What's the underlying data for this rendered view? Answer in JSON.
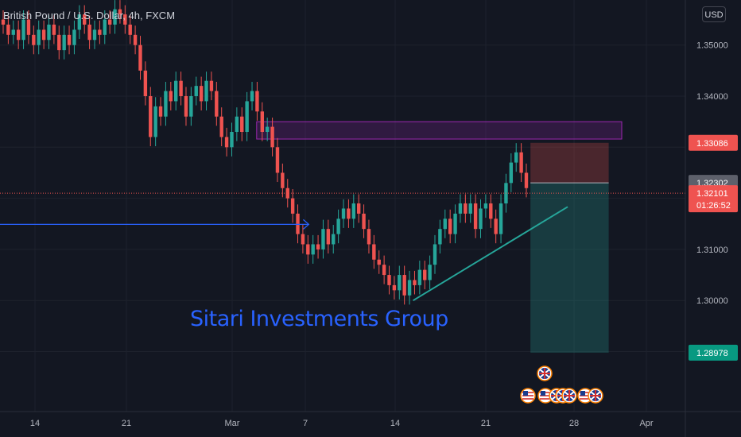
{
  "header": {
    "symbol_title": "British Pound / U.S. Dollar, 4h, FXCM",
    "currency": "USD"
  },
  "watermark": "Sitari Investments Group",
  "colors": {
    "background": "#131722",
    "grid": "#1e222d",
    "bull": "#26a69a",
    "bear": "#ef5350",
    "zone_border": "#9c27b0",
    "arrow": "#2962ff",
    "trendline": "#26a69a",
    "stop_zone": "rgba(239,83,80,0.25)",
    "target_zone": "rgba(38,166,154,0.25)"
  },
  "chart_data": {
    "type": "candlestick",
    "title": "British Pound / U.S. Dollar, 4h, FXCM",
    "x_ticks": [
      "14",
      "21",
      "Mar",
      "7",
      "14",
      "21",
      "28",
      "Apr"
    ],
    "y_ticks": [
      "1.35000",
      "1.34000",
      "1.31000",
      "1.30000"
    ],
    "ylim": [
      1.2767,
      1.3564
    ],
    "price_labels": [
      {
        "value": 1.33086,
        "text": "1.33086",
        "kind": "stop"
      },
      {
        "value": 1.32302,
        "text": "1.32302",
        "kind": "entry"
      },
      {
        "value": 1.32101,
        "text": "1.32101",
        "sub": "01:26:52",
        "kind": "current"
      },
      {
        "value": 1.28978,
        "text": "1.28978",
        "kind": "target"
      }
    ],
    "current_price": 1.32101,
    "countdown": "01:26:52",
    "resistance_zone": {
      "from_date": "Mar 3",
      "to_date": "Mar 31",
      "low": 1.3316,
      "high": 1.335
    },
    "arrow": {
      "from_date": "Feb 6",
      "to_date": "Mar 7",
      "price": 1.3149
    },
    "trendline": {
      "from": {
        "date": "Mar 15",
        "price": 1.3
      },
      "to": {
        "date": "Mar 26",
        "price": 1.3174
      }
    },
    "position": {
      "from_date": "Mar 24",
      "to_date": "Mar 30",
      "entry": 1.32302,
      "stop": 1.33086,
      "target": 1.28978
    },
    "candles_close": [
      1.354,
      1.352,
      1.353,
      1.351,
      1.355,
      1.352,
      1.35,
      1.353,
      1.351,
      1.354,
      1.352,
      1.349,
      1.352,
      1.35,
      1.353,
      1.356,
      1.354,
      1.351,
      1.353,
      1.352,
      1.355,
      1.354,
      1.357,
      1.356,
      1.354,
      1.352,
      1.35,
      1.345,
      1.34,
      1.332,
      1.338,
      1.336,
      1.341,
      1.339,
      1.343,
      1.34,
      1.336,
      1.34,
      1.342,
      1.339,
      1.343,
      1.341,
      1.336,
      1.332,
      1.33,
      1.333,
      1.336,
      1.333,
      1.339,
      1.341,
      1.337,
      1.333,
      1.334,
      1.33,
      1.325,
      1.322,
      1.32,
      1.317,
      1.313,
      1.311,
      1.309,
      1.311,
      1.31,
      1.314,
      1.311,
      1.313,
      1.316,
      1.318,
      1.316,
      1.319,
      1.317,
      1.314,
      1.311,
      1.308,
      1.307,
      1.305,
      1.303,
      1.302,
      1.305,
      1.301,
      1.304,
      1.303,
      1.306,
      1.304,
      1.307,
      1.311,
      1.314,
      1.316,
      1.313,
      1.317,
      1.319,
      1.317,
      1.319,
      1.314,
      1.318,
      1.319,
      1.316,
      1.313,
      1.319,
      1.323,
      1.327,
      1.329,
      1.325,
      1.322
    ],
    "event_icons": {
      "top_row": [
        "UK"
      ],
      "bottom_row": [
        "US",
        "US",
        "UK",
        "UK",
        "UK",
        "US",
        "UK"
      ]
    }
  }
}
